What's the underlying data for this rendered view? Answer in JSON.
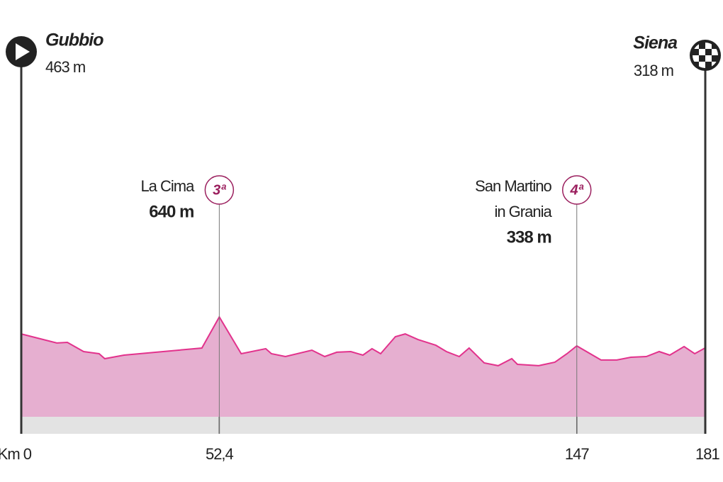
{
  "chart_data": {
    "type": "area",
    "x": [
      0,
      9.4,
      12.2,
      16.5,
      20.6,
      22.1,
      27.2,
      47.8,
      52.4,
      58.2,
      64.7,
      66.2,
      69.9,
      76.9,
      80.3,
      83.5,
      87.2,
      90.4,
      92.8,
      95.1,
      99.0,
      101.6,
      105.0,
      109.7,
      112.5,
      115.9,
      118.5,
      122.5,
      126.2,
      129.8,
      131.3,
      136.9,
      141.2,
      144.4,
      147,
      153.4,
      157.6,
      161.3,
      165.4,
      168.8,
      171.6,
      175.4,
      178.2,
      181
    ],
    "values": [
      463,
      368,
      375,
      279,
      257,
      205,
      242,
      316,
      640,
      257,
      309,
      257,
      227,
      294,
      227,
      272,
      279,
      242,
      309,
      257,
      434,
      463,
      404,
      345,
      279,
      227,
      316,
      161,
      132,
      205,
      146,
      132,
      168,
      257,
      338,
      191,
      191,
      220,
      227,
      279,
      242,
      331,
      257,
      318
    ],
    "color": "#e6afd0",
    "line_color": "#e2328c",
    "xlim": [
      0,
      181
    ],
    "ylim": [
      -400,
      1600
    ],
    "xticks": [
      {
        "value": 0,
        "label": "Km 0"
      },
      {
        "value": 52.4,
        "label": "52,4"
      },
      147,
      181
    ],
    "start": {
      "name": "Gubbio",
      "elevation": "463 m"
    },
    "finish": {
      "name": "Siena",
      "elevation": "318 m"
    },
    "climbs": [
      {
        "name": [
          "La Cima"
        ],
        "elevation": "640 m",
        "category": "3ª",
        "tick": 1
      },
      {
        "name": [
          "San Martino",
          "in Grania"
        ],
        "elevation": "338 m",
        "category": "4ª",
        "tick": 2
      }
    ]
  }
}
